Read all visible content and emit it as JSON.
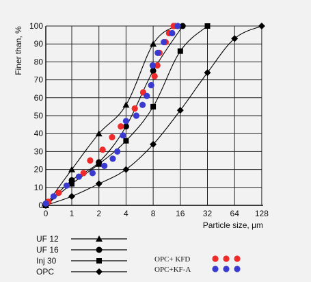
{
  "chart_data": {
    "type": "scatter",
    "title": "",
    "xlabel": "Particle size, μm",
    "ylabel": "Finer than, %",
    "x_scale": "log2-with-origin",
    "xlim": [
      0,
      128
    ],
    "ylim": [
      0,
      100
    ],
    "grid": true,
    "x_ticks": [
      {
        "value": 0,
        "label": "0"
      },
      {
        "value": 1,
        "label": "1"
      },
      {
        "value": 2,
        "label": "2"
      },
      {
        "value": 4,
        "label": "4"
      },
      {
        "value": 8,
        "label": "8"
      },
      {
        "value": 16,
        "label": "16"
      },
      {
        "value": 32,
        "label": "32"
      },
      {
        "value": 64,
        "label": "64"
      },
      {
        "value": 128,
        "label": "128"
      }
    ],
    "y_ticks": [
      {
        "value": 0,
        "label": "0"
      },
      {
        "value": 10,
        "label": "10"
      },
      {
        "value": 20,
        "label": "20"
      },
      {
        "value": 30,
        "label": "30"
      },
      {
        "value": 40,
        "label": "40"
      },
      {
        "value": 50,
        "label": "50"
      },
      {
        "value": 60,
        "label": "60"
      },
      {
        "value": 70,
        "label": "70"
      },
      {
        "value": 80,
        "label": "80"
      },
      {
        "value": 90,
        "label": "90"
      },
      {
        "value": 100,
        "label": "100"
      }
    ],
    "series": [
      {
        "name": "UF 12",
        "marker": "triangle",
        "color": "#000000",
        "curve": true,
        "points": [
          [
            0,
            0
          ],
          [
            1,
            20
          ],
          [
            2,
            40
          ],
          [
            4,
            56
          ],
          [
            8,
            90
          ],
          [
            14,
            100
          ]
        ]
      },
      {
        "name": "UF 16",
        "marker": "circle",
        "color": "#000000",
        "curve": true,
        "points": [
          [
            0,
            0
          ],
          [
            1,
            14
          ],
          [
            2,
            24
          ],
          [
            4,
            44
          ],
          [
            8,
            75
          ],
          [
            17,
            100
          ]
        ]
      },
      {
        "name": "Inj 30",
        "marker": "square",
        "color": "#000000",
        "curve": true,
        "points": [
          [
            0,
            0
          ],
          [
            1,
            12
          ],
          [
            2,
            23
          ],
          [
            4,
            36
          ],
          [
            8,
            55
          ],
          [
            16,
            86
          ],
          [
            32,
            100
          ]
        ]
      },
      {
        "name": "OPC",
        "marker": "diamond",
        "color": "#000000",
        "curve": true,
        "points": [
          [
            0,
            0
          ],
          [
            1,
            5
          ],
          [
            2,
            12
          ],
          [
            4,
            20
          ],
          [
            8,
            34
          ],
          [
            16,
            53
          ],
          [
            32,
            74
          ],
          [
            64,
            93
          ],
          [
            128,
            100
          ]
        ]
      },
      {
        "name": "OPC+ KFD",
        "marker": "dot",
        "color": "#ee2a2a",
        "curve": false,
        "points": [
          [
            0.1,
            2
          ],
          [
            0.5,
            7
          ],
          [
            1.35,
            18
          ],
          [
            1.6,
            25
          ],
          [
            2.2,
            31
          ],
          [
            2.8,
            38
          ],
          [
            3.5,
            44
          ],
          [
            5.0,
            54
          ],
          [
            6.2,
            63
          ],
          [
            8.3,
            72
          ],
          [
            8.9,
            78
          ],
          [
            9.4,
            85
          ],
          [
            11.0,
            91
          ],
          [
            12.0,
            96
          ],
          [
            13.5,
            100
          ]
        ]
      },
      {
        "name": "OPC+KF-A",
        "marker": "dot",
        "color": "#3a3ad0",
        "curve": false,
        "points": [
          [
            0.0,
            1
          ],
          [
            0.3,
            5
          ],
          [
            0.8,
            11
          ],
          [
            1.2,
            16
          ],
          [
            1.7,
            18
          ],
          [
            2.3,
            22
          ],
          [
            2.85,
            26
          ],
          [
            3.2,
            30
          ],
          [
            3.7,
            39
          ],
          [
            4.0,
            47
          ],
          [
            5.2,
            50
          ],
          [
            6.1,
            56
          ],
          [
            6.8,
            61
          ],
          [
            7.6,
            67
          ],
          [
            7.9,
            78
          ],
          [
            9.0,
            85
          ],
          [
            10.5,
            91
          ],
          [
            13.0,
            96
          ],
          [
            15.0,
            100
          ]
        ]
      }
    ],
    "legend": {
      "placement": "bottom",
      "entries": [
        "UF 12",
        "UF 16",
        "Inj 30",
        "OPC",
        "OPC+ KFD",
        "OPC+KF-A"
      ]
    }
  }
}
